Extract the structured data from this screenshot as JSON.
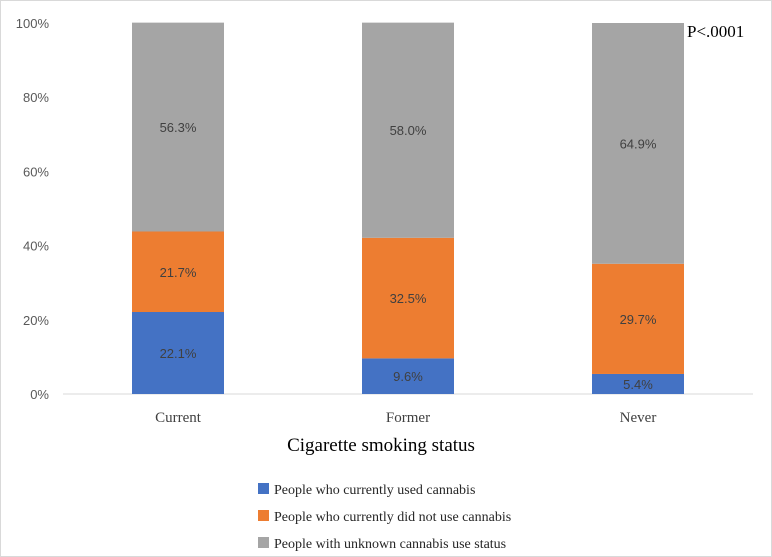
{
  "chart_data": {
    "type": "bar",
    "stacked": true,
    "categories": [
      "Current",
      "Former",
      "Never"
    ],
    "series": [
      {
        "name": "People who currently used cannabis",
        "color": "#4472C4",
        "values": [
          22.1,
          9.6,
          5.4
        ],
        "labels": [
          "22.1%",
          "9.6%",
          "5.4%"
        ]
      },
      {
        "name": "People who currently did not use cannabis",
        "color": "#ED7D31",
        "values": [
          21.7,
          32.5,
          29.7
        ],
        "labels": [
          "21.7%",
          "32.5%",
          "29.7%"
        ]
      },
      {
        "name": "People with unknown cannabis use status",
        "color": "#A5A5A5",
        "values": [
          56.3,
          58.0,
          64.9
        ],
        "labels": [
          "56.3%",
          "58.0%",
          "64.9%"
        ]
      }
    ],
    "title": "",
    "xlabel": "Cigarette smoking status",
    "ylabel": "",
    "ylim": [
      0,
      100
    ],
    "yticks": [
      "0%",
      "20%",
      "40%",
      "60%",
      "80%",
      "100%"
    ],
    "annotation": "P<.0001",
    "grid": false,
    "legend_position": "bottom"
  }
}
